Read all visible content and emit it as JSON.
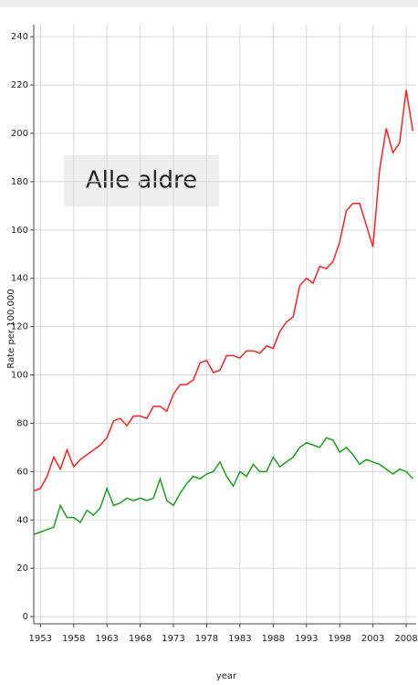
{
  "chart_data": {
    "type": "line",
    "annotation": "Alle aldre",
    "x_label": "year",
    "y_label": "Rate per 100,000",
    "x": [
      1952,
      1953,
      1954,
      1955,
      1956,
      1957,
      1958,
      1959,
      1960,
      1961,
      1962,
      1963,
      1964,
      1965,
      1966,
      1967,
      1968,
      1969,
      1970,
      1971,
      1972,
      1973,
      1974,
      1975,
      1976,
      1977,
      1978,
      1979,
      1980,
      1981,
      1982,
      1983,
      1984,
      1985,
      1986,
      1987,
      1988,
      1989,
      1990,
      1991,
      1992,
      1993,
      1994,
      1995,
      1996,
      1997,
      1998,
      1999,
      2000,
      2001,
      2002,
      2003,
      2004,
      2005,
      2006,
      2007,
      2008,
      2009
    ],
    "series": [
      {
        "color": "#ff2020",
        "values": [
          52,
          53,
          58,
          66,
          61,
          69,
          62,
          65,
          67,
          69,
          71,
          74,
          81,
          82,
          79,
          83,
          83,
          82,
          87,
          87,
          85,
          92,
          96,
          96,
          98,
          105,
          106,
          101,
          102,
          108,
          108,
          107,
          110,
          110,
          109,
          112,
          111,
          118,
          122,
          124,
          137,
          140,
          138,
          145,
          144,
          147,
          155,
          168,
          171,
          171,
          162,
          153,
          185,
          202,
          192,
          196,
          218,
          201
        ]
      },
      {
        "color": "#1aa01a",
        "values": [
          34,
          35,
          36,
          37,
          46,
          41,
          41,
          39,
          44,
          42,
          45,
          53,
          46,
          47,
          49,
          48,
          49,
          48,
          49,
          57,
          48,
          46,
          51,
          55,
          58,
          57,
          59,
          60,
          64,
          58,
          54,
          60,
          58,
          63,
          60,
          60,
          66,
          62,
          64,
          66,
          70,
          72,
          71,
          70,
          74,
          73,
          68,
          70,
          67,
          63,
          65,
          64,
          63,
          61,
          59,
          61,
          60,
          57
        ]
      }
    ],
    "xlim": [
      1952,
      2009.5
    ],
    "xticks": [
      1953,
      1958,
      1963,
      1968,
      1973,
      1978,
      1983,
      1988,
      1993,
      1998,
      2003,
      2008
    ],
    "ylim": [
      -3,
      245
    ],
    "yticks": [
      0,
      20,
      40,
      60,
      80,
      100,
      120,
      140,
      160,
      180,
      200,
      220,
      240
    ],
    "grid": true
  }
}
